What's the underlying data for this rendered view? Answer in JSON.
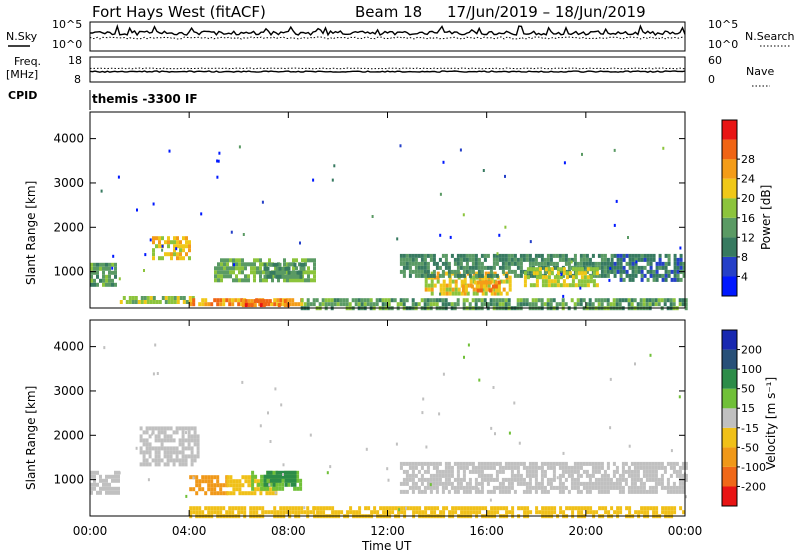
{
  "header": {
    "station": "Fort Hays West (fitACF)",
    "beam": "Beam 18",
    "dates": "17/Jun/2019 – 18/Jun/2019"
  },
  "labels": {
    "nsky": "N.Sky",
    "nsearch": "N.Search",
    "freq_line1": "Freq.",
    "freq_line2": "[MHz]",
    "nave": "Nave",
    "cpid": "CPID",
    "program": "themis -3300 IF",
    "x_axis": "Time UT",
    "slant_range": "Slant Range [km]",
    "power_label": "Power [dB]",
    "velocity_label": "Velocity [m s⁻¹]"
  },
  "top_ticks": {
    "noise_left": [
      "10^5",
      "10^0"
    ],
    "noise_right": [
      "10^5",
      "10^0"
    ],
    "freq_left": [
      "18",
      "8"
    ],
    "freq_right": [
      "60",
      "0"
    ]
  },
  "chart_data": [
    {
      "type": "heatmap",
      "name": "power",
      "xlabel": "Time UT",
      "ylabel": "Slant Range [km]",
      "xlim": [
        0,
        24
      ],
      "ylim": [
        180,
        4600
      ],
      "x_ticks": [
        "00:00",
        "04:00",
        "08:00",
        "12:00",
        "16:00",
        "20:00",
        "00:00"
      ],
      "y_ticks": [
        1000,
        2000,
        3000,
        4000
      ],
      "colorbar": {
        "label": "Power [dB]",
        "ticks": [
          4,
          8,
          12,
          16,
          20,
          24,
          28
        ],
        "colors": [
          "#0018ff",
          "#2540c8",
          "#377a60",
          "#5a9a64",
          "#8cc43c",
          "#f0c818",
          "#f49c18",
          "#f06414",
          "#e81414"
        ]
      },
      "regions": [
        {
          "t0": 0.0,
          "t1": 1.0,
          "r0": 700,
          "r1": 1200,
          "level": 14
        },
        {
          "t0": 1.2,
          "t1": 4.2,
          "r0": 300,
          "r1": 450,
          "level": 18
        },
        {
          "t0": 2.5,
          "t1": 4.0,
          "r0": 1300,
          "r1": 1800,
          "level": 22
        },
        {
          "t0": 4.0,
          "t1": 8.5,
          "r0": 250,
          "r1": 400,
          "level": 26
        },
        {
          "t0": 6.0,
          "t1": 8.0,
          "r0": 230,
          "r1": 380,
          "level": 30
        },
        {
          "t0": 5.0,
          "t1": 9.0,
          "r0": 800,
          "r1": 1300,
          "level": 16
        },
        {
          "t0": 7.0,
          "t1": 8.6,
          "r0": 900,
          "r1": 1200,
          "level": 12
        },
        {
          "t0": 8.5,
          "t1": 24.0,
          "r0": 200,
          "r1": 400,
          "level": 14
        },
        {
          "t0": 13.5,
          "t1": 17.0,
          "r0": 500,
          "r1": 1000,
          "level": 22
        },
        {
          "t0": 15.0,
          "t1": 16.5,
          "r0": 550,
          "r1": 800,
          "level": 26
        },
        {
          "t0": 12.5,
          "t1": 21.0,
          "r0": 900,
          "r1": 1400,
          "level": 12
        },
        {
          "t0": 17.5,
          "t1": 20.5,
          "r0": 700,
          "r1": 1100,
          "level": 20
        },
        {
          "t0": 21.0,
          "t1": 24.0,
          "r0": 800,
          "r1": 1400,
          "level": 10
        }
      ]
    },
    {
      "type": "heatmap",
      "name": "velocity",
      "xlabel": "Time UT",
      "ylabel": "Slant Range [km]",
      "xlim": [
        0,
        24
      ],
      "ylim": [
        180,
        4600
      ],
      "x_ticks": [
        "00:00",
        "04:00",
        "08:00",
        "12:00",
        "16:00",
        "20:00",
        "00:00"
      ],
      "y_ticks": [
        1000,
        2000,
        3000,
        4000
      ],
      "colorbar": {
        "label": "Velocity [m s⁻¹]",
        "ticks": [
          200,
          100,
          50,
          15,
          -15,
          -50,
          -100,
          -200
        ],
        "colors": [
          "#1828b0",
          "#285078",
          "#2c8c48",
          "#70c038",
          "#c0c0c0",
          "#f0c018",
          "#f09818",
          "#f06818",
          "#e81414"
        ]
      },
      "regions": [
        {
          "t0": 0.0,
          "t1": 1.2,
          "r0": 700,
          "r1": 1200,
          "level": 0
        },
        {
          "t0": 2.0,
          "t1": 4.3,
          "r0": 1300,
          "r1": 2200,
          "level": 0
        },
        {
          "t0": 4.0,
          "t1": 9.0,
          "r0": 200,
          "r1": 400,
          "level": -30
        },
        {
          "t0": 4.0,
          "t1": 5.5,
          "r0": 700,
          "r1": 1100,
          "level": -60
        },
        {
          "t0": 5.5,
          "t1": 7.5,
          "r0": 700,
          "r1": 1100,
          "level": -30
        },
        {
          "t0": 6.5,
          "t1": 8.5,
          "r0": 800,
          "r1": 1200,
          "level": 30
        },
        {
          "t0": 7.0,
          "t1": 8.3,
          "r0": 900,
          "r1": 1200,
          "level": 80
        },
        {
          "t0": 9.0,
          "t1": 24.0,
          "r0": 200,
          "r1": 400,
          "level": -30
        },
        {
          "t0": 12.5,
          "t1": 24.0,
          "r0": 700,
          "r1": 1400,
          "level": 0
        }
      ]
    }
  ]
}
